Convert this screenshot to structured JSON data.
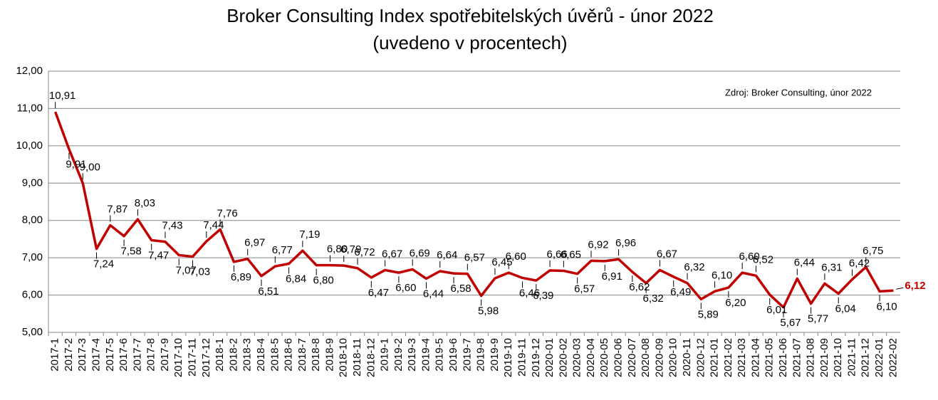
{
  "chart_data": {
    "type": "line",
    "title": "Broker Consulting Index spotřebitelských úvěrů - únor 2022",
    "subtitle": "(uvedeno v procentech)",
    "annotation": "Zdroj: Broker Consulting, únor 2022",
    "categories": [
      "2017-1",
      "2017-2",
      "2017-3",
      "2017-4",
      "2017-5",
      "2017-6",
      "2017-7",
      "2017-8",
      "2017-9",
      "2017-10",
      "2017-11",
      "2017-12",
      "2018-1",
      "2018-2",
      "2018-3",
      "2018-4",
      "2018-5",
      "2018-6",
      "2018-7",
      "2018-8",
      "2018-9",
      "2018-10",
      "2018-11",
      "2018-12",
      "2019-1",
      "2019-2",
      "2019-3",
      "2019-4",
      "2019-5",
      "2019-6",
      "2019-7",
      "2019-8",
      "2019-9",
      "2019-10",
      "2019-11",
      "2019-12",
      "2020-01",
      "2020-02",
      "2020-03",
      "2020-04",
      "2020-05",
      "2020-06",
      "2020-07",
      "2020-08",
      "2020-09",
      "2020-10",
      "2020-11",
      "2020-12",
      "2021-01",
      "2021-02",
      "2021-03",
      "2021-04",
      "2021-05",
      "2021-06",
      "2021-07",
      "2021-08",
      "2021-09",
      "2021-10",
      "2021-11",
      "2021-12",
      "2022-01",
      "2022-02"
    ],
    "series": [
      {
        "name": "Index",
        "color": "#c00000",
        "values": [
          10.91,
          9.91,
          9.0,
          7.24,
          7.87,
          7.58,
          8.03,
          7.47,
          7.43,
          7.07,
          7.03,
          7.44,
          7.76,
          6.89,
          6.97,
          6.51,
          6.77,
          6.84,
          7.19,
          6.8,
          6.8,
          6.79,
          6.72,
          6.47,
          6.67,
          6.6,
          6.69,
          6.44,
          6.64,
          6.58,
          6.57,
          5.98,
          6.45,
          6.6,
          6.46,
          6.39,
          6.66,
          6.65,
          6.57,
          6.92,
          6.91,
          6.96,
          6.62,
          6.32,
          6.67,
          6.49,
          6.32,
          5.89,
          6.1,
          6.2,
          6.6,
          6.52,
          6.01,
          5.67,
          6.44,
          5.77,
          6.31,
          6.04,
          6.42,
          6.75,
          6.1,
          6.12
        ],
        "value_labels": [
          "10,91",
          "9,91",
          "9,00",
          "7,24",
          "7,87",
          "7,58",
          "8,03",
          "7,47",
          "7,43",
          "7,07",
          "7,03",
          "7,44",
          "7,76",
          "6,89",
          "6,97",
          "6,51",
          "6,77",
          "6,84",
          "7,19",
          "6,80",
          "6,80",
          "6,79",
          "6,72",
          "6,47",
          "6,67",
          "6,60",
          "6,69",
          "6,44",
          "6,64",
          "6,58",
          "6,57",
          "5,98",
          "6,45",
          "6,60",
          "6,46",
          "6,39",
          "6,66",
          "6,65",
          "6,57",
          "6,92",
          "6,91",
          "6,96",
          "6,62",
          "6,32",
          "6,67",
          "6,49",
          "6,32",
          "5,89",
          "6,10",
          "6,20",
          "6,60",
          "6,52",
          "6,01",
          "5,67",
          "6,44",
          "5,77",
          "6,31",
          "6,04",
          "6,42",
          "6,75",
          "6,10",
          "6,12"
        ]
      }
    ],
    "ylim": [
      5,
      12
    ],
    "yticks": [
      {
        "value": 5,
        "label": "5,00"
      },
      {
        "value": 6,
        "label": "6,00"
      },
      {
        "value": 7,
        "label": "7,00"
      },
      {
        "value": 8,
        "label": "8,00"
      },
      {
        "value": 9,
        "label": "9,00"
      },
      {
        "value": 10,
        "label": "10,00"
      },
      {
        "value": 11,
        "label": "11,00"
      },
      {
        "value": 12,
        "label": "12,00"
      }
    ],
    "grid": true
  }
}
